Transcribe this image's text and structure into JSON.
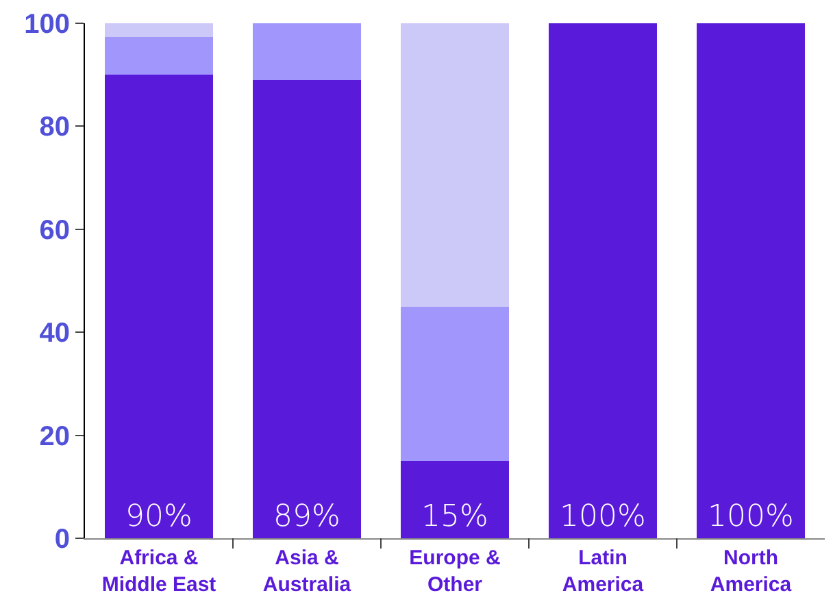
{
  "chart_data": {
    "type": "bar",
    "stacked": true,
    "categories": [
      "Africa & Middle East",
      "Asia & Australia",
      "Europe & Other",
      "Latin America",
      "North America"
    ],
    "series": [
      {
        "color": "#5a1ad9",
        "values": [
          90,
          89,
          15,
          100,
          100
        ],
        "value_labels": [
          "90%",
          "89%",
          "15%",
          "100%",
          "100%"
        ]
      },
      {
        "color": "#a096fc",
        "values": [
          7.3,
          11,
          30,
          0,
          0
        ]
      },
      {
        "color": "#ccc9f8",
        "values": [
          2.7,
          0,
          55,
          0,
          0
        ]
      }
    ],
    "ylim": [
      0,
      100
    ],
    "yticks": [
      0,
      20,
      40,
      60,
      80,
      100
    ],
    "grid": false
  }
}
